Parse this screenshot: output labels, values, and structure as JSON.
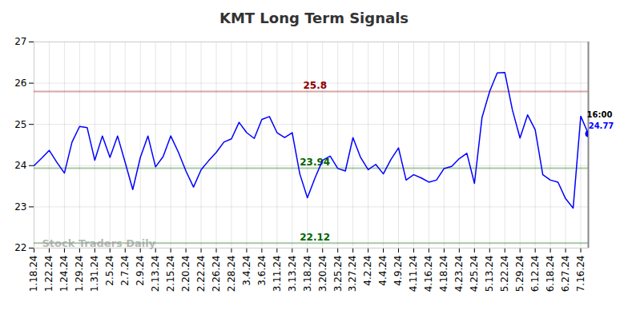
{
  "chart_data": {
    "type": "line",
    "title": "KMT Long Term Signals",
    "categories": [
      "1.18.24",
      null,
      "1.22.24",
      null,
      "1.24.24",
      null,
      "1.29.24",
      null,
      "1.31.24",
      null,
      "2.5.24",
      null,
      "2.7.24",
      null,
      "2.9.24",
      null,
      "2.13.24",
      null,
      "2.15.24",
      null,
      "2.20.24",
      null,
      "2.22.24",
      null,
      "2.26.24",
      null,
      "2.28.24",
      null,
      "3.4.24",
      null,
      "3.6.24",
      null,
      "3.11.24",
      null,
      "3.13.24",
      null,
      "3.18.24",
      null,
      "3.20.24",
      null,
      "3.25.24",
      null,
      "3.27.24",
      null,
      "4.2.24",
      null,
      "4.4.24",
      null,
      "4.9.24",
      null,
      "4.11.24",
      null,
      "4.16.24",
      null,
      "4.18.24",
      null,
      "4.23.24",
      null,
      "4.25.24",
      null,
      "5.13.24",
      null,
      "5.22.24",
      null,
      "5.29.24",
      null,
      "6.12.24",
      null,
      "6.18.24",
      null,
      "6.27.24",
      null,
      "7.16.24",
      null
    ],
    "values": [
      24.0,
      24.18,
      24.37,
      24.08,
      23.82,
      24.57,
      24.95,
      24.92,
      24.13,
      24.72,
      24.2,
      24.72,
      24.08,
      23.42,
      24.2,
      24.72,
      23.97,
      24.22,
      24.72,
      24.33,
      23.87,
      23.48,
      23.9,
      24.12,
      24.32,
      24.57,
      24.65,
      25.05,
      24.8,
      24.66,
      25.12,
      25.19,
      24.8,
      24.68,
      24.8,
      23.8,
      23.22,
      23.7,
      24.13,
      24.23,
      23.93,
      23.87,
      24.68,
      24.2,
      23.9,
      24.03,
      23.8,
      24.15,
      24.43,
      23.65,
      23.78,
      23.7,
      23.6,
      23.65,
      23.93,
      23.98,
      24.17,
      24.3,
      23.57,
      25.17,
      25.8,
      26.25,
      26.26,
      25.35,
      24.67,
      25.23,
      24.87,
      23.78,
      23.65,
      23.6,
      23.2,
      22.97,
      25.2,
      24.77
    ],
    "color": "#0000ff",
    "marker": "last",
    "ylim": [
      22,
      27
    ],
    "yticks": [
      22,
      23,
      24,
      25,
      26,
      27
    ],
    "grid": true,
    "reference_lines": [
      {
        "value": 25.8,
        "color": "#8b0000"
      },
      {
        "value": 23.94,
        "color": "#006400"
      },
      {
        "value": 22.12,
        "color": "#006400"
      }
    ],
    "last_point_label": "16:00",
    "watermark": "Stock Traders Daily"
  }
}
